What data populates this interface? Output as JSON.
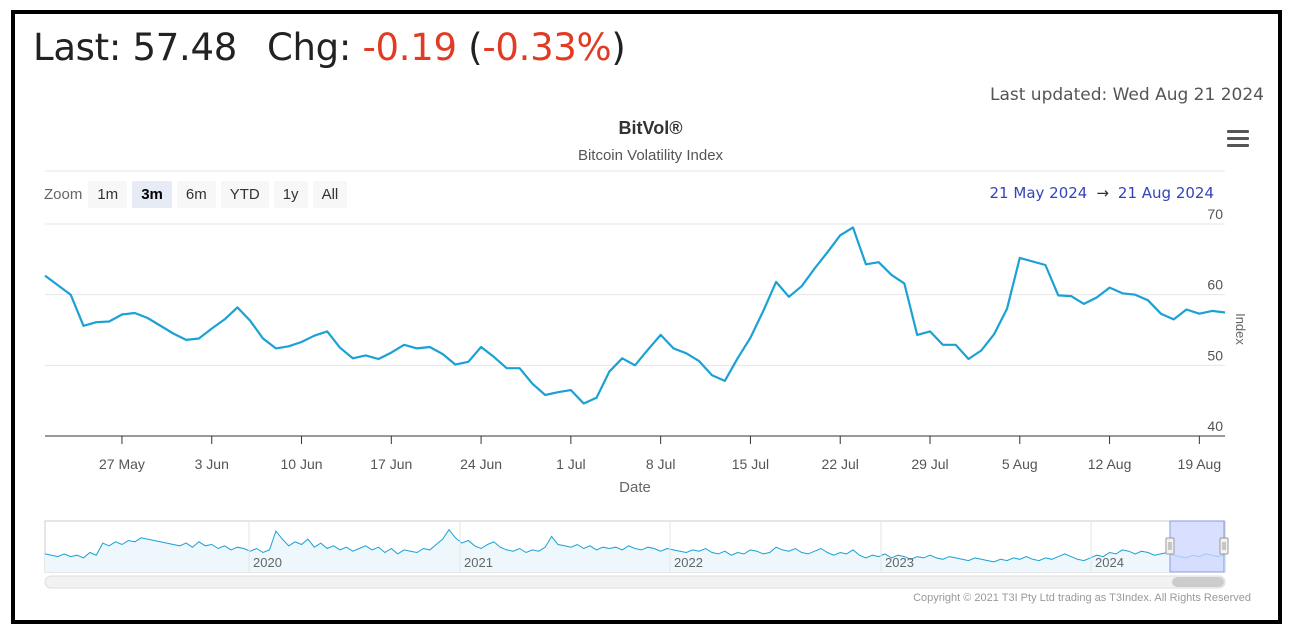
{
  "header": {
    "last_label": "Last:",
    "last_value": "57.48",
    "chg_label": "Chg:",
    "chg_value": "-0.19",
    "chg_paren_open": "(",
    "chg_pct": "-0.33%",
    "chg_paren_close": ")",
    "last_updated": "Last updated: Wed Aug 21 2024"
  },
  "zoom": {
    "label": "Zoom",
    "buttons": [
      "1m",
      "3m",
      "6m",
      "YTD",
      "1y",
      "All"
    ],
    "active": "3m"
  },
  "range": {
    "from": "21 May 2024",
    "arrow": "→",
    "to": "21 Aug 2024"
  },
  "copyright": "Copyright © 2021 T3I Pty Ltd trading as T3Index. All Rights Reserved",
  "colors": {
    "series": "#1ba1d4",
    "negative": "#e03b24",
    "range_text": "#3344bb",
    "navigator_mask": "#ccd6ff"
  },
  "chart_data": {
    "type": "line",
    "title": "BitVol®",
    "subtitle": "Bitcoin Volatility Index",
    "xlabel": "Date",
    "ylabel": "Index",
    "ylim": [
      40,
      70
    ],
    "yticks": [
      40,
      50,
      60,
      70
    ],
    "xlim": [
      "2024-05-21",
      "2024-08-21"
    ],
    "xticks": [
      {
        "date": "2024-05-27",
        "label": "27 May"
      },
      {
        "date": "2024-06-03",
        "label": "3 Jun"
      },
      {
        "date": "2024-06-10",
        "label": "10 Jun"
      },
      {
        "date": "2024-06-17",
        "label": "17 Jun"
      },
      {
        "date": "2024-06-24",
        "label": "24 Jun"
      },
      {
        "date": "2024-07-01",
        "label": "1 Jul"
      },
      {
        "date": "2024-07-08",
        "label": "8 Jul"
      },
      {
        "date": "2024-07-15",
        "label": "15 Jul"
      },
      {
        "date": "2024-07-22",
        "label": "22 Jul"
      },
      {
        "date": "2024-07-29",
        "label": "29 Jul"
      },
      {
        "date": "2024-08-05",
        "label": "5 Aug"
      },
      {
        "date": "2024-08-12",
        "label": "12 Aug"
      },
      {
        "date": "2024-08-19",
        "label": "19 Aug"
      }
    ],
    "grid": true,
    "legend": "none",
    "series": [
      {
        "values": [
          [
            "2024-05-21",
            62.7
          ],
          [
            "2024-05-23",
            60.0
          ],
          [
            "2024-05-24",
            55.6
          ],
          [
            "2024-05-25",
            56.1
          ],
          [
            "2024-05-26",
            56.2
          ],
          [
            "2024-05-27",
            57.2
          ],
          [
            "2024-05-28",
            57.4
          ],
          [
            "2024-05-29",
            56.7
          ],
          [
            "2024-05-31",
            54.5
          ],
          [
            "2024-06-01",
            53.6
          ],
          [
            "2024-06-02",
            53.8
          ],
          [
            "2024-06-03",
            55.2
          ],
          [
            "2024-06-04",
            56.5
          ],
          [
            "2024-06-05",
            58.2
          ],
          [
            "2024-06-06",
            56.3
          ],
          [
            "2024-06-07",
            53.8
          ],
          [
            "2024-06-08",
            52.4
          ],
          [
            "2024-06-09",
            52.7
          ],
          [
            "2024-06-10",
            53.3
          ],
          [
            "2024-06-11",
            54.2
          ],
          [
            "2024-06-12",
            54.8
          ],
          [
            "2024-06-13",
            52.5
          ],
          [
            "2024-06-14",
            51.0
          ],
          [
            "2024-06-15",
            51.4
          ],
          [
            "2024-06-16",
            50.9
          ],
          [
            "2024-06-17",
            51.8
          ],
          [
            "2024-06-18",
            52.9
          ],
          [
            "2024-06-19",
            52.4
          ],
          [
            "2024-06-20",
            52.6
          ],
          [
            "2024-06-21",
            51.6
          ],
          [
            "2024-06-22",
            50.1
          ],
          [
            "2024-06-23",
            50.5
          ],
          [
            "2024-06-24",
            52.6
          ],
          [
            "2024-06-25",
            51.2
          ],
          [
            "2024-06-26",
            49.6
          ],
          [
            "2024-06-27",
            49.6
          ],
          [
            "2024-06-28",
            47.4
          ],
          [
            "2024-06-29",
            45.8
          ],
          [
            "2024-06-30",
            46.2
          ],
          [
            "2024-07-01",
            46.5
          ],
          [
            "2024-07-02",
            44.6
          ],
          [
            "2024-07-03",
            45.4
          ],
          [
            "2024-07-04",
            49.1
          ],
          [
            "2024-07-05",
            51.0
          ],
          [
            "2024-07-06",
            50.0
          ],
          [
            "2024-07-07",
            52.2
          ],
          [
            "2024-07-08",
            54.3
          ],
          [
            "2024-07-09",
            52.4
          ],
          [
            "2024-07-10",
            51.7
          ],
          [
            "2024-07-11",
            50.6
          ],
          [
            "2024-07-12",
            48.6
          ],
          [
            "2024-07-13",
            47.8
          ],
          [
            "2024-07-14",
            51.0
          ],
          [
            "2024-07-15",
            53.9
          ],
          [
            "2024-07-16",
            57.7
          ],
          [
            "2024-07-17",
            61.8
          ],
          [
            "2024-07-18",
            59.7
          ],
          [
            "2024-07-19",
            61.2
          ],
          [
            "2024-07-20",
            63.7
          ],
          [
            "2024-07-21",
            66.0
          ],
          [
            "2024-07-22",
            68.4
          ],
          [
            "2024-07-23",
            69.5
          ],
          [
            "2024-07-24",
            64.3
          ],
          [
            "2024-07-25",
            64.6
          ],
          [
            "2024-07-26",
            62.8
          ],
          [
            "2024-07-27",
            61.6
          ],
          [
            "2024-07-28",
            54.3
          ],
          [
            "2024-07-29",
            54.8
          ],
          [
            "2024-07-30",
            52.9
          ],
          [
            "2024-07-31",
            52.9
          ],
          [
            "2024-08-01",
            50.9
          ],
          [
            "2024-08-02",
            52.1
          ],
          [
            "2024-08-03",
            54.4
          ],
          [
            "2024-08-04",
            58.0
          ],
          [
            "2024-08-05",
            65.2
          ],
          [
            "2024-08-07",
            64.2
          ],
          [
            "2024-08-08",
            59.9
          ],
          [
            "2024-08-09",
            59.8
          ],
          [
            "2024-08-10",
            58.7
          ],
          [
            "2024-08-11",
            59.6
          ],
          [
            "2024-08-12",
            61.0
          ],
          [
            "2024-08-13",
            60.2
          ],
          [
            "2024-08-14",
            60.0
          ],
          [
            "2024-08-15",
            59.2
          ],
          [
            "2024-08-16",
            57.3
          ],
          [
            "2024-08-17",
            56.5
          ],
          [
            "2024-08-18",
            57.9
          ],
          [
            "2024-08-19",
            57.3
          ],
          [
            "2024-08-20",
            57.7
          ],
          [
            "2024-08-21",
            57.48
          ]
        ]
      }
    ],
    "navigator": {
      "years": [
        "2020",
        "2021",
        "2022",
        "2023",
        "2024"
      ],
      "values": [
        52,
        51,
        50,
        52,
        50,
        51,
        49,
        53,
        51,
        60,
        58,
        61,
        59,
        62,
        61,
        64,
        63,
        62,
        61,
        60,
        59,
        58,
        60,
        57,
        61,
        58,
        59,
        56,
        58,
        55,
        57,
        56,
        54,
        56,
        53,
        55,
        69,
        63,
        58,
        61,
        59,
        63,
        57,
        60,
        56,
        58,
        55,
        57,
        54,
        56,
        58,
        55,
        57,
        53,
        56,
        52,
        55,
        54,
        53,
        56,
        55,
        59,
        63,
        70,
        64,
        60,
        62,
        58,
        56,
        59,
        61,
        57,
        55,
        54,
        56,
        53,
        55,
        54,
        57,
        65,
        59,
        58,
        57,
        59,
        56,
        58,
        55,
        57,
        56,
        57,
        55,
        58,
        56,
        55,
        57,
        56,
        54,
        56,
        55,
        54,
        53,
        55,
        54,
        56,
        53,
        52,
        54,
        51,
        53,
        52,
        55,
        54,
        52,
        53,
        57,
        55,
        54,
        56,
        53,
        52,
        54,
        56,
        53,
        51,
        53,
        52,
        55,
        51,
        49,
        51,
        50,
        52,
        49,
        51,
        50,
        48,
        50,
        49,
        51,
        49,
        48,
        50,
        49,
        48,
        47,
        49,
        48,
        47,
        46,
        48,
        47,
        49,
        48,
        50,
        48,
        47,
        49,
        48,
        50,
        52,
        50,
        48,
        47,
        49,
        51,
        50,
        53,
        52,
        55,
        54,
        52,
        54,
        53,
        51,
        52,
        53,
        51,
        50,
        49,
        51,
        50,
        52,
        51,
        50,
        52
      ]
    }
  }
}
